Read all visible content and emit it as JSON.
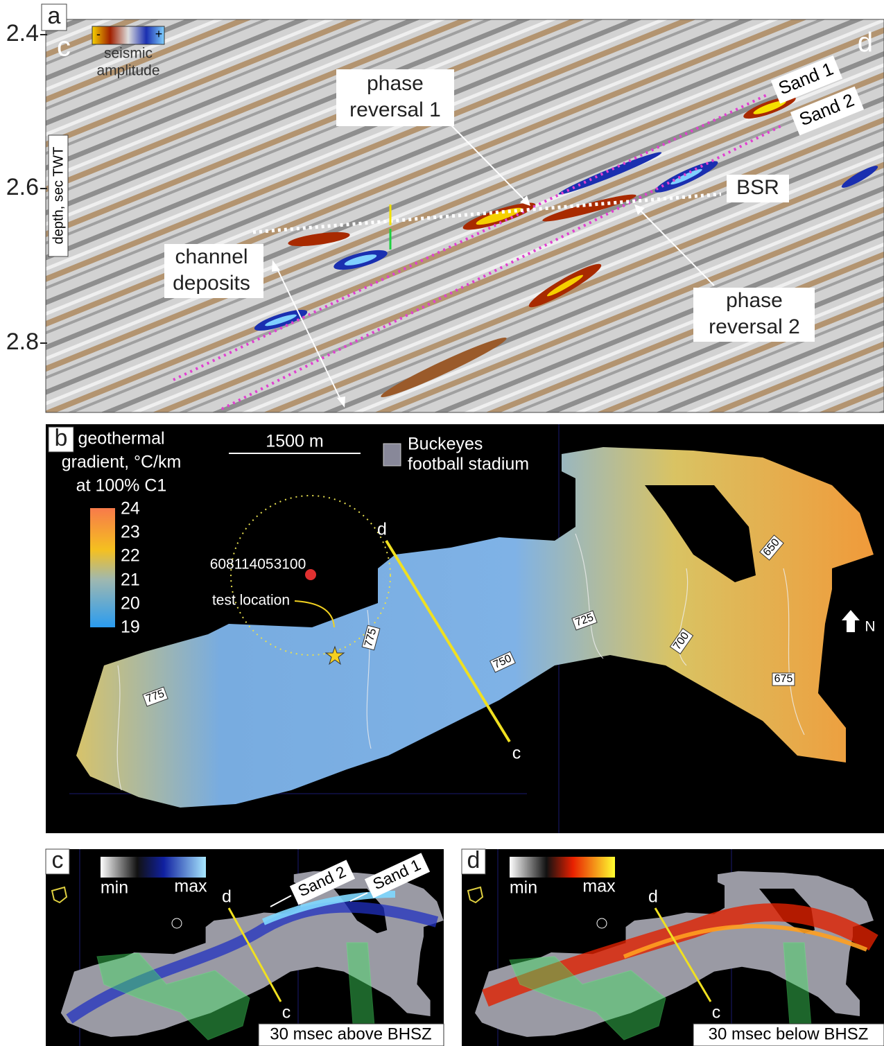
{
  "panel_a": {
    "label": "a",
    "axis_label": "depth, sec TWT",
    "ticks": [
      "2.4",
      "2.6",
      "2.8"
    ],
    "corner_left": "c",
    "corner_right": "d",
    "colorbar": {
      "minus": "-",
      "plus": "+",
      "caption": [
        "seismic",
        "amplitude"
      ]
    },
    "annotations": {
      "phase_reversal_1": [
        "phase",
        "reversal 1"
      ],
      "phase_reversal_2": [
        "phase",
        "reversal 2"
      ],
      "channel_deposits": [
        "channel",
        "deposits"
      ],
      "bsr": "BSR",
      "sand_1": "Sand 1",
      "sand_2": "Sand 2"
    }
  },
  "panel_b": {
    "label": "b",
    "legend_title": [
      "geothermal",
      "gradient, °C/km",
      "at 100% C1"
    ],
    "colorbar_ticks": [
      "24",
      "23",
      "22",
      "21",
      "20",
      "19"
    ],
    "scale_bar": "1500 m",
    "stadium": [
      "Buckeyes",
      "football stadium"
    ],
    "well_id": "608114053100",
    "test_location": "test location",
    "line_end_d": "d",
    "line_end_c": "c",
    "north": "N",
    "contours": [
      "650",
      "725",
      "700",
      "750",
      "775",
      "675",
      "775"
    ]
  },
  "panel_c": {
    "label": "c",
    "min": "min",
    "max": "max",
    "line_d": "d",
    "line_c": "c",
    "sand_2": "Sand 2",
    "sand_1": "Sand 1",
    "caption": "30 msec above BHSZ"
  },
  "panel_d": {
    "label": "d",
    "min": "min",
    "max": "max",
    "line_d": "d",
    "line_c": "c",
    "caption": "30 msec below BHSZ"
  }
}
